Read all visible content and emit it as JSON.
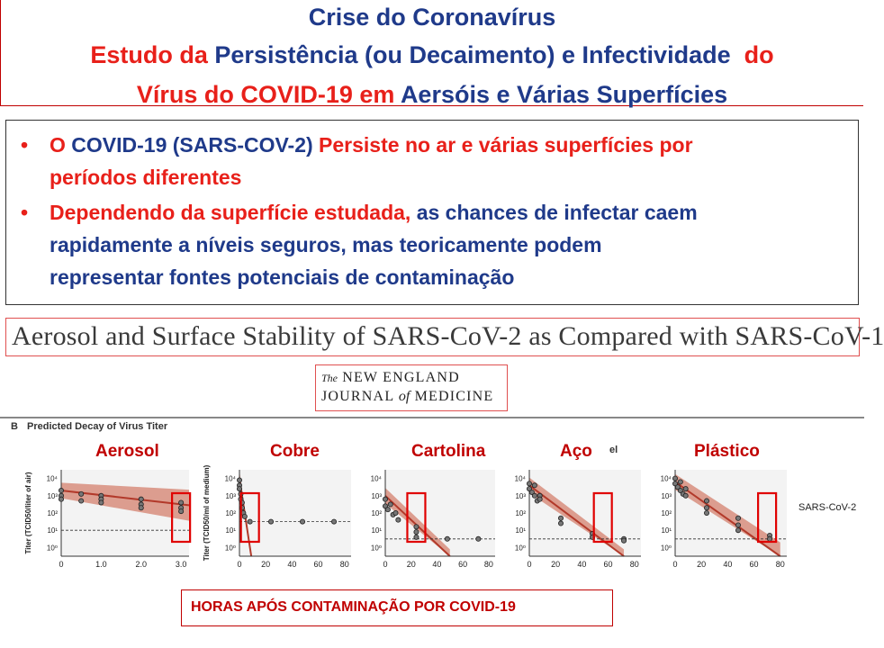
{
  "title": {
    "line1": "Crise do Coronavírus",
    "line2_a": "Estudo da",
    "line2_b": "Persistência (ou Decaimento) e Infectividade",
    "line2_c": "do",
    "line3_a": "Vírus do COVID-19 em",
    "line3_b": "Aersóis e Várias Superfícies"
  },
  "bullets": [
    {
      "p1": "O",
      "p2": "COVID-19 (SARS-COV-2)",
      "p3": "Persiste no ar e várias superfícies por",
      "p4": "períodos diferentes"
    },
    {
      "p1": "Dependendo da superfície estudada,",
      "p2": "as chances de infectar caem",
      "p3": "rapidamente a níveis seguros, mas teoricamente podem",
      "p4": "representar  fontes potenciais de contaminação"
    }
  ],
  "article_title": "Aerosol and Surface Stability of SARS-CoV-2 as Compared with SARS-CoV-1",
  "journal": {
    "the": "The",
    "line1": "NEW ENGLAND",
    "line2a": "JOURNAL",
    "of": "of",
    "line2b": "MEDICINE"
  },
  "panel": {
    "letter": "B",
    "heading": "Predicted Decay of Virus Titer",
    "fragment": "el",
    "series_label": "SARS-CoV-2"
  },
  "panel_labels": [
    "Aerosol",
    "Cobre",
    "Cartolina",
    "Aço",
    "Plástico"
  ],
  "y_axis_labels": {
    "aerosol": "Titer (TCID50/liter of air)",
    "surface": "Titer (TCID50/ml of medium)"
  },
  "y_ticks": [
    "10⁴",
    "10³",
    "10²",
    "10¹",
    "10⁰"
  ],
  "footer": "HORAS APÓS CONTAMINAÇÃO POR COVID-19",
  "colors": {
    "navy": "#1f3a8a",
    "red": "#e8201a",
    "dark_red": "#c00000",
    "band": "#c8553d"
  },
  "chart_data": [
    {
      "type": "scatter",
      "title": "Aerosol",
      "ylabel": "Titer (TCID50/liter of air)",
      "x_ticks": [
        "0",
        "1.0",
        "2.0",
        "3.0"
      ],
      "xlim": [
        0,
        3.2
      ],
      "ylim_log10": [
        -0.5,
        4.5
      ],
      "y_scale": "log",
      "limit_log10": 1,
      "fit_log10": [
        3.3,
        2.45
      ],
      "points": [
        [
          0,
          3.3
        ],
        [
          0,
          3.0
        ],
        [
          0,
          2.8
        ],
        [
          0.5,
          3.1
        ],
        [
          0.5,
          2.7
        ],
        [
          1,
          3.0
        ],
        [
          1,
          2.8
        ],
        [
          1,
          2.6
        ],
        [
          2,
          2.8
        ],
        [
          2,
          2.5
        ],
        [
          2,
          2.3
        ],
        [
          3,
          2.6
        ],
        [
          3,
          2.3
        ],
        [
          3,
          2.1
        ]
      ],
      "highlight_x": 3
    },
    {
      "type": "scatter",
      "title": "Cobre",
      "ylabel": "Titer (TCID50/ml of medium)",
      "x_ticks": [
        "0",
        "20",
        "40",
        "60",
        "80"
      ],
      "xlim": [
        0,
        85
      ],
      "ylim_log10": [
        -0.5,
        4.5
      ],
      "y_scale": "log",
      "limit_log10": 1.5,
      "fit_log10": [
        4.0,
        -4.5
      ],
      "fit_end_x": 9,
      "points": [
        [
          0,
          3.9
        ],
        [
          0,
          3.6
        ],
        [
          0,
          3.4
        ],
        [
          1,
          3.1
        ],
        [
          1,
          2.8
        ],
        [
          2,
          2.6
        ],
        [
          2,
          2.3
        ],
        [
          3,
          2.0
        ],
        [
          4,
          1.8
        ],
        [
          8,
          1.5
        ],
        [
          24,
          1.5
        ],
        [
          48,
          1.5
        ],
        [
          72,
          1.5
        ]
      ],
      "highlight_x": 8
    },
    {
      "type": "scatter",
      "title": "Cartolina",
      "x_ticks": [
        "0",
        "20",
        "40",
        "60",
        "80"
      ],
      "xlim": [
        0,
        85
      ],
      "ylim_log10": [
        -0.5,
        4.5
      ],
      "y_scale": "log",
      "limit_log10": 0.5,
      "fit_log10": [
        3.0,
        -1.0
      ],
      "fit_end_x": 50,
      "points": [
        [
          0,
          2.8
        ],
        [
          0,
          2.4
        ],
        [
          2,
          2.2
        ],
        [
          4,
          2.5
        ],
        [
          6,
          1.9
        ],
        [
          8,
          2.0
        ],
        [
          10,
          1.6
        ],
        [
          24,
          1.2
        ],
        [
          24,
          0.9
        ],
        [
          24,
          0.6
        ],
        [
          48,
          0.5
        ],
        [
          72,
          0.5
        ]
      ],
      "highlight_x": 24
    },
    {
      "type": "scatter",
      "title": "Aço",
      "x_ticks": [
        "0",
        "20",
        "40",
        "60",
        "80"
      ],
      "xlim": [
        0,
        85
      ],
      "ylim_log10": [
        -0.5,
        4.5
      ],
      "y_scale": "log",
      "limit_log10": 0.5,
      "fit_log10": [
        3.6,
        -1.0
      ],
      "fit_end_x": 72,
      "points": [
        [
          0,
          3.7
        ],
        [
          0,
          3.4
        ],
        [
          2,
          3.2
        ],
        [
          4,
          3.0
        ],
        [
          4,
          3.6
        ],
        [
          6,
          2.7
        ],
        [
          8,
          3.0
        ],
        [
          8,
          2.8
        ],
        [
          24,
          1.7
        ],
        [
          24,
          1.4
        ],
        [
          48,
          0.8
        ],
        [
          48,
          0.6
        ],
        [
          72,
          0.5
        ],
        [
          72,
          0.4
        ]
      ],
      "highlight_x": 56
    },
    {
      "type": "scatter",
      "title": "Plástico",
      "x_ticks": [
        "0",
        "20",
        "40",
        "60",
        "80"
      ],
      "xlim": [
        0,
        85
      ],
      "ylim_log10": [
        -0.5,
        4.5
      ],
      "y_scale": "log",
      "limit_log10": 0.5,
      "fit_log10": [
        3.8,
        -0.6
      ],
      "fit_end_x": 80,
      "points": [
        [
          0,
          4.0
        ],
        [
          0,
          3.7
        ],
        [
          2,
          3.5
        ],
        [
          4,
          3.3
        ],
        [
          4,
          3.8
        ],
        [
          6,
          3.1
        ],
        [
          8,
          3.4
        ],
        [
          8,
          3.0
        ],
        [
          24,
          2.7
        ],
        [
          24,
          2.3
        ],
        [
          24,
          2.0
        ],
        [
          48,
          1.7
        ],
        [
          48,
          1.3
        ],
        [
          48,
          1.0
        ],
        [
          72,
          0.7
        ],
        [
          72,
          0.5
        ]
      ],
      "highlight_x": 70
    }
  ]
}
